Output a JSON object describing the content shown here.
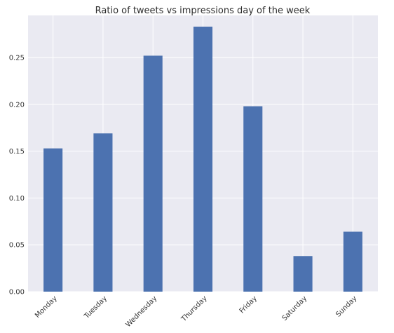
{
  "chart_data": {
    "type": "bar",
    "title": "Ratio of tweets vs impressions day of the week",
    "xlabel": "",
    "ylabel": "",
    "categories": [
      "Monday",
      "Tuesday",
      "Wednesday",
      "Thursday",
      "Friday",
      "Saturday",
      "Sunday"
    ],
    "values": [
      0.153,
      0.169,
      0.252,
      0.283,
      0.198,
      0.038,
      0.064
    ],
    "ylim": [
      0,
      0.295
    ],
    "yticks": [
      "0.00",
      "0.05",
      "0.10",
      "0.15",
      "0.20",
      "0.25"
    ],
    "grid": true,
    "legend": "none",
    "colors": {
      "bar": "#4c72b0",
      "plot_background": "#eaeaf2",
      "grid": "#ffffff"
    }
  }
}
